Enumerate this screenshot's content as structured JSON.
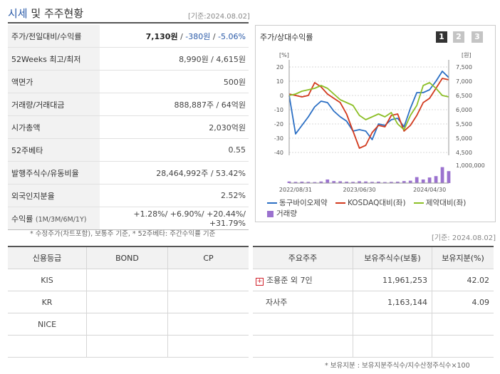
{
  "header": {
    "title_hl": "시세",
    "title_rest": " 및 주주현황",
    "date": "[기준:2024.08.02]"
  },
  "summary": {
    "rows": [
      {
        "label": "주가/전일대비/수익률",
        "price": "7,130원",
        "sep1": " / ",
        "change": "-380원",
        "sep2": " / ",
        "rate": "-5.06%"
      },
      {
        "label": "52Weeks 최고/최저",
        "value": "8,990원 / 4,615원"
      },
      {
        "label": "액면가",
        "value": "500원"
      },
      {
        "label": "거래량/거래대금",
        "value": "888,887주 / 64억원"
      },
      {
        "label": "시가총액",
        "value": "2,030억원"
      },
      {
        "label": "52주베타",
        "value": "0.55"
      },
      {
        "label": "발행주식수/유동비율",
        "value": "28,464,992주 / 53.42%"
      },
      {
        "label": "외국인지분율",
        "value": "2.52%"
      },
      {
        "label": "수익률",
        "label_sub": "(1M/3M/6M/1Y)",
        "value": "+1.28%/ +6.90%/ +20.44%/ +31.79%"
      }
    ],
    "note": "* 수정주가(차트포함), 보통주 기준, * 52주베타: 주간수익률 기준"
  },
  "chart": {
    "title": "주가/상대수익률",
    "tabs": [
      "1",
      "2",
      "3"
    ],
    "left_unit": "[%]",
    "right_unit": "[원]",
    "legend": [
      {
        "name": "동구바이오제약",
        "color": "#2b6fc4"
      },
      {
        "name": "KOSDAQ대비(좌)",
        "color": "#d23a1e"
      },
      {
        "name": "제약대비(좌)",
        "color": "#8cbf26"
      },
      {
        "name": "거래량",
        "color": "#9b72cf"
      }
    ]
  },
  "chart_data": {
    "type": "line",
    "x_ticks": [
      "2022/08/31",
      "2023/06/30",
      "2024/04/30"
    ],
    "ylim_left": [
      -40,
      20
    ],
    "yticks_left": [
      "20",
      "10",
      "0",
      "-10",
      "-20",
      "-30",
      "-40"
    ],
    "ylim_right": [
      4500,
      7500
    ],
    "yticks_right": [
      "7,500",
      "7,000",
      "6,500",
      "6,000",
      "5,500",
      "5,000",
      "4,500"
    ],
    "volume_tick": "1,000,000",
    "series": [
      {
        "name": "동구바이오제약",
        "axis": "right",
        "values": [
          6500,
          5150,
          5450,
          5750,
          6100,
          6300,
          6250,
          5950,
          5750,
          5600,
          5250,
          5300,
          5250,
          4950,
          5500,
          5450,
          5650,
          5700,
          5400,
          6050,
          6600,
          6600,
          6700,
          7000,
          7350,
          7130
        ]
      },
      {
        "name": "KOSDAQ대비(좌)",
        "axis": "left",
        "values": [
          1,
          0,
          -1,
          0,
          9,
          6,
          1,
          -2,
          -5,
          -13,
          -25,
          -37,
          -35,
          -26,
          -21,
          -22,
          -14,
          -13,
          -25,
          -21,
          -14,
          -5,
          -2,
          5,
          12,
          11
        ]
      },
      {
        "name": "제약대비(좌)",
        "axis": "left",
        "values": [
          0,
          1,
          3,
          4,
          5,
          7,
          5,
          1,
          -3,
          -5,
          -7,
          -14,
          -17,
          -15,
          -13,
          -15,
          -12,
          -20,
          -24,
          -14,
          -7,
          7,
          9,
          5,
          0,
          -1
        ]
      }
    ],
    "volume": [
      0.08,
      0.06,
      0.07,
      0.06,
      0.05,
      0.08,
      0.18,
      0.1,
      0.09,
      0.07,
      0.06,
      0.09,
      0.08,
      0.06,
      0.07,
      0.05,
      0.06,
      0.07,
      0.1,
      0.12,
      0.3,
      0.18,
      0.28,
      0.35,
      0.8,
      0.6
    ]
  },
  "credit": {
    "headers": [
      "신용등급",
      "BOND",
      "CP"
    ],
    "rows": [
      {
        "agency": "KIS",
        "bond": "",
        "cp": ""
      },
      {
        "agency": "KR",
        "bond": "",
        "cp": ""
      },
      {
        "agency": "NICE",
        "bond": "",
        "cp": ""
      },
      {
        "agency": "",
        "bond": "",
        "cp": ""
      }
    ]
  },
  "holders": {
    "date": "[기준: 2024.08.02]",
    "headers": [
      "주요주주",
      "보유주식수(보통)",
      "보유지분(%)"
    ],
    "rows": [
      {
        "name": "조용준 외 7인",
        "shares": "11,961,253",
        "pct": "42.02",
        "expand": "+"
      },
      {
        "name": "자사주",
        "shares": "1,163,144",
        "pct": "4.09"
      },
      {
        "name": "",
        "shares": "",
        "pct": ""
      },
      {
        "name": "",
        "shares": "",
        "pct": ""
      }
    ],
    "note": "* 보유지분 : 보유지분주식수/지수산정주식수×100"
  }
}
